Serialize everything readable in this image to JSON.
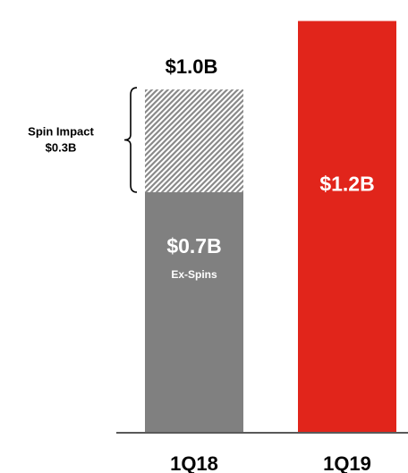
{
  "chart_data": {
    "type": "bar",
    "stacked": true,
    "categories": [
      "1Q18",
      "1Q19"
    ],
    "ylim": [
      0,
      1.23
    ],
    "grid": false,
    "legend": "none",
    "bars": [
      {
        "category": "1Q18",
        "total": 1.0,
        "total_label": "$1.0B",
        "segments": [
          {
            "value": 0.7,
            "label": "$0.7B",
            "sublabel": "Ex-Spins",
            "color": "#808080",
            "pattern": "solid"
          },
          {
            "value": 0.3,
            "label": "",
            "sublabel": "",
            "color": "#a6a6a6",
            "pattern": "hatched"
          }
        ]
      },
      {
        "category": "1Q19",
        "total": 1.2,
        "total_label": "",
        "segments": [
          {
            "value": 1.2,
            "label": "$1.2B",
            "sublabel": "",
            "color": "#e1251b",
            "pattern": "solid"
          }
        ]
      }
    ],
    "annotations": [
      {
        "text_lines": [
          "Spin Impact",
          "$0.3B"
        ],
        "target": "1Q18",
        "segment": 1
      }
    ]
  }
}
